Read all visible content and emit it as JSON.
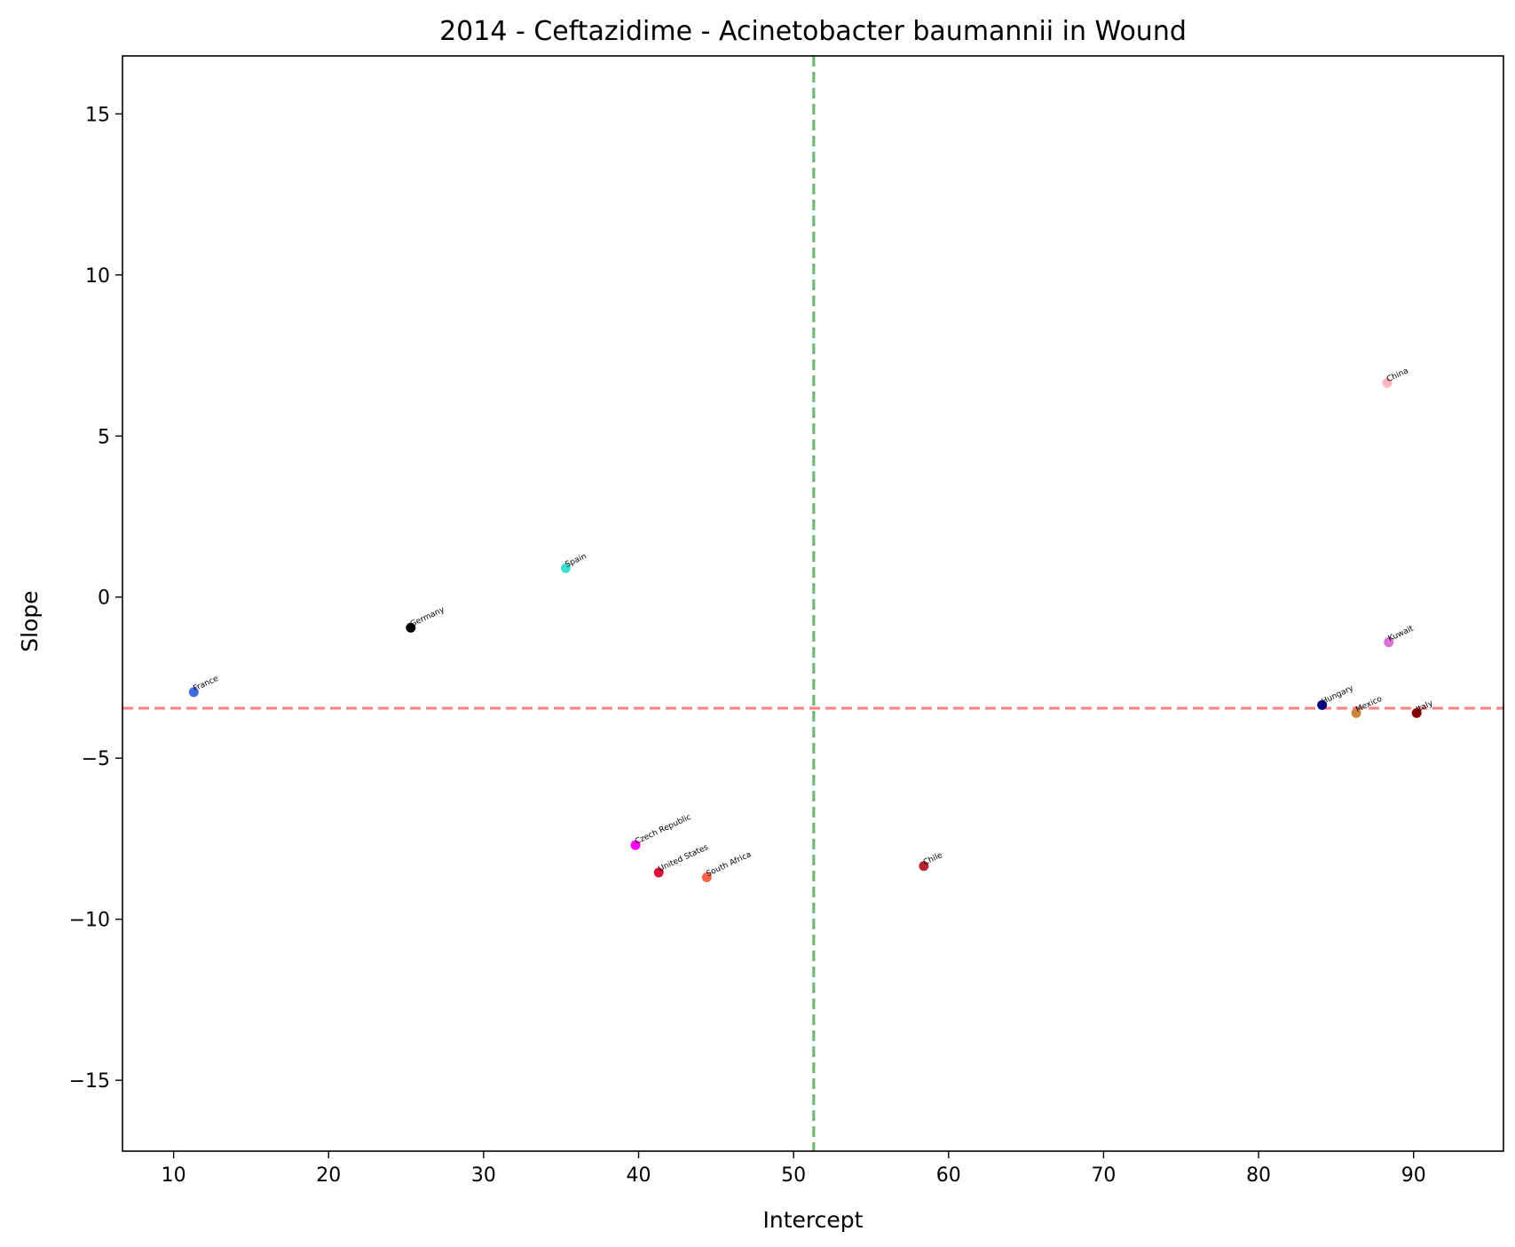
{
  "chart_data": {
    "type": "scatter",
    "title": "2014 - Ceftazidime - Acinetobacter baumannii in Wound",
    "xlabel": "Intercept",
    "ylabel": "Slope",
    "xlim": [
      6.7,
      95.8
    ],
    "ylim": [
      -17.2,
      16.8
    ],
    "xticks": [
      10,
      20,
      30,
      40,
      50,
      60,
      70,
      80,
      90
    ],
    "yticks": [
      -15,
      -10,
      -5,
      0,
      5,
      10,
      15
    ],
    "grid": false,
    "reference_lines": [
      {
        "orientation": "vertical",
        "value": 51.3,
        "color": "#5aa85a",
        "style": "dashed"
      },
      {
        "orientation": "horizontal",
        "value": -3.45,
        "color": "#ff6b6b",
        "style": "dashed"
      }
    ],
    "points": [
      {
        "label": "France",
        "x": 11.3,
        "y": -2.95,
        "color": "#4169e1"
      },
      {
        "label": "Germany",
        "x": 25.3,
        "y": -0.95,
        "color": "#000000"
      },
      {
        "label": "Spain",
        "x": 35.3,
        "y": 0.9,
        "color": "#40e0d0"
      },
      {
        "label": "Czech Republic",
        "x": 39.8,
        "y": -7.7,
        "color": "#ff00ff"
      },
      {
        "label": "United States",
        "x": 41.3,
        "y": -8.55,
        "color": "#dc143c"
      },
      {
        "label": "South Africa",
        "x": 44.4,
        "y": -8.7,
        "color": "#ff6347"
      },
      {
        "label": "Chile",
        "x": 58.4,
        "y": -8.35,
        "color": "#b22234"
      },
      {
        "label": "Hungary",
        "x": 84.1,
        "y": -3.35,
        "color": "#000080"
      },
      {
        "label": "Mexico",
        "x": 86.3,
        "y": -3.6,
        "color": "#cd853f"
      },
      {
        "label": "Italy",
        "x": 90.2,
        "y": -3.6,
        "color": "#8b0000"
      },
      {
        "label": "Kuwait",
        "x": 88.4,
        "y": -1.4,
        "color": "#da70d6"
      },
      {
        "label": "China",
        "x": 88.3,
        "y": 6.65,
        "color": "#ffb6c1"
      }
    ]
  }
}
